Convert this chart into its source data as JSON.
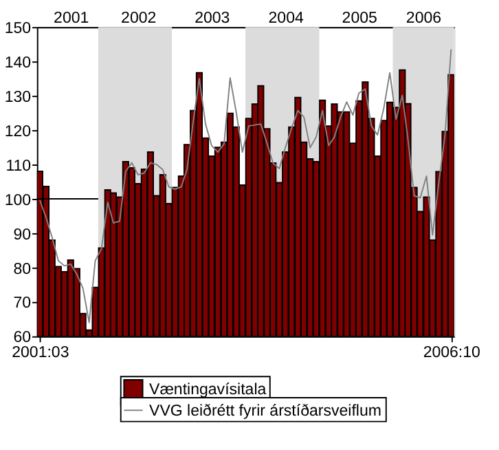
{
  "chart_data": {
    "type": "bar",
    "x": [
      "2001-03",
      "2001-04",
      "2001-05",
      "2001-06",
      "2001-07",
      "2001-08",
      "2001-09",
      "2001-10",
      "2001-11",
      "2001-12",
      "2002-01",
      "2002-02",
      "2002-03",
      "2002-04",
      "2002-05",
      "2002-06",
      "2002-07",
      "2002-08",
      "2002-09",
      "2002-10",
      "2002-11",
      "2002-12",
      "2003-01",
      "2003-02",
      "2003-03",
      "2003-04",
      "2003-05",
      "2003-06",
      "2003-07",
      "2003-08",
      "2003-09",
      "2003-10",
      "2003-11",
      "2003-12",
      "2004-01",
      "2004-02",
      "2004-03",
      "2004-04",
      "2004-05",
      "2004-06",
      "2004-07",
      "2004-08",
      "2004-09",
      "2004-10",
      "2004-11",
      "2004-12",
      "2005-01",
      "2005-02",
      "2005-03",
      "2005-04",
      "2005-05",
      "2005-06",
      "2005-07",
      "2005-08",
      "2005-09",
      "2005-10",
      "2005-11",
      "2005-12",
      "2006-01",
      "2006-02",
      "2006-03",
      "2006-04",
      "2006-05",
      "2006-06",
      "2006-07",
      "2006-08",
      "2006-09",
      "2006-10"
    ],
    "series": [
      {
        "name": "Væntingavísitala",
        "color": "#800000",
        "values": [
          108,
          103.6,
          88,
          80.3,
          78.8,
          82.2,
          79.7,
          66.6,
          61.8,
          74.2,
          85.7,
          102.6,
          101.7,
          100.5,
          110.8,
          109,
          104.4,
          108.6,
          113.6,
          100.9,
          107,
          98.6,
          103.3,
          106.6,
          115.8,
          125.7,
          136.7,
          117.7,
          112.4,
          115,
          116.5,
          124.9,
          120.9,
          104,
          123.4,
          127.6,
          132.9,
          120.4,
          110.4,
          104.7,
          113.6,
          120.9,
          129.5,
          116.5,
          111.6,
          110.8,
          128.7,
          121.2,
          127.6,
          125.3,
          125.3,
          116.2,
          128.5,
          134,
          123.4,
          112.4,
          122.8,
          128.1,
          126.6,
          137.5,
          127.7,
          103.3,
          96.3,
          100.5,
          88,
          107.9,
          119.6,
          136.1
        ]
      },
      {
        "type": "line",
        "name": "VVG leiðrétt fyrir árstíðarsveiflum",
        "color": "#808080",
        "values": [
          99.6,
          94.6,
          88.8,
          82,
          80.5,
          81,
          78,
          74,
          64,
          82,
          85.5,
          99,
          93,
          93.5,
          108,
          110.5,
          107,
          107.5,
          110.5,
          110,
          108.5,
          103.5,
          102.8,
          103.5,
          108.5,
          122.5,
          135,
          121.8,
          115.5,
          113.6,
          116,
          135.2,
          125,
          113.6,
          121.2,
          121.5,
          121.8,
          116.2,
          110.4,
          108.8,
          114.9,
          120.6,
          125.7,
          123.8,
          114.9,
          118,
          125.7,
          115.5,
          118,
          123.8,
          128.2,
          124.4,
          130.8,
          132,
          121.2,
          118.6,
          126.3,
          136.7,
          123.2,
          130.1,
          117.4,
          100.9,
          100.3,
          106.6,
          89.5,
          104.7,
          118.7,
          143.5
        ]
      },
      {
        "type": "line",
        "color": "#000000",
        "x": [
          "2001-02-15",
          "2001-12-16"
        ],
        "values": [
          100,
          100
        ]
      }
    ],
    "bands": [
      {
        "axis": "x",
        "from": "2001-12-16",
        "to": "2002-12-16",
        "color": "#dcdcdc"
      },
      {
        "axis": "x",
        "from": "2003-12-16",
        "to": "2004-12-16",
        "color": "#dcdcdc"
      },
      {
        "axis": "x",
        "from": "2005-12-16",
        "to": "2006-10-16",
        "color": "#dcdcdc"
      }
    ],
    "xlim": [
      "2001-02-15",
      "2006-10-16"
    ],
    "xticks": [
      {
        "value": "2001-03",
        "label": "2001:03"
      },
      {
        "value": "2006-10",
        "label": "2006:10"
      }
    ],
    "x2lim": [
      "2001-02-15",
      "2006-10-16"
    ],
    "x2ticks": [
      {
        "value": "2001-08-01",
        "label": "2001"
      },
      {
        "value": "2002-07-01",
        "label": "2002"
      },
      {
        "value": "2003-07-01",
        "label": "2003"
      },
      {
        "value": "2004-07-01",
        "label": "2004"
      },
      {
        "value": "2005-07-01",
        "label": "2005"
      },
      {
        "value": "2006-05-15",
        "label": "2006"
      }
    ],
    "ylim": [
      60,
      150
    ],
    "yticks": [
      60,
      70,
      80,
      90,
      100,
      110,
      120,
      130,
      140,
      150
    ],
    "grid": false,
    "legend": "bottom"
  }
}
